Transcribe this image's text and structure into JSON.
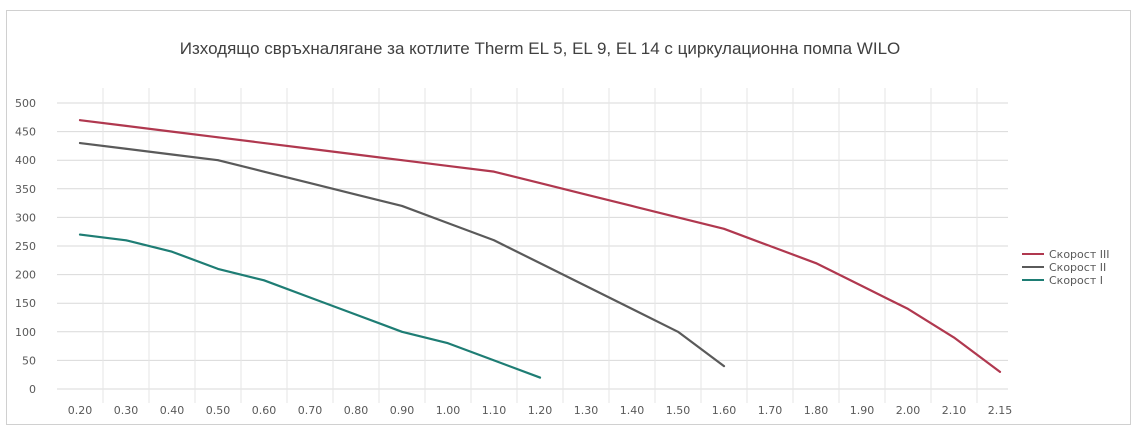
{
  "chart_data": {
    "type": "line",
    "title": "Изходящо свръхналягане за котлите Therm EL 5, EL 9, EL 14 с циркулационна помпа WILO",
    "xlabel": "",
    "ylabel": "",
    "categories": [
      "0.20",
      "0.30",
      "0.40",
      "0.50",
      "0.60",
      "0.70",
      "0.80",
      "0.90",
      "1.00",
      "1.10",
      "1.20",
      "1.30",
      "1.40",
      "1.50",
      "1.60",
      "1.70",
      "1.80",
      "1.90",
      "2.00",
      "2.10",
      "2.15"
    ],
    "y_ticks": [
      "0",
      "50",
      "100",
      "150",
      "200",
      "250",
      "300",
      "350",
      "400",
      "450",
      "500"
    ],
    "ylim": [
      0,
      500
    ],
    "grid": true,
    "legend_position": "right",
    "series": [
      {
        "name": "Скорост III",
        "color": "#b0384f",
        "values": [
          470,
          460,
          450,
          440,
          430,
          420,
          410,
          400,
          390,
          380,
          360,
          340,
          320,
          300,
          280,
          250,
          220,
          180,
          140,
          90,
          30
        ]
      },
      {
        "name": "Скорост II",
        "color": "#5a5a5a",
        "values": [
          430,
          420,
          410,
          400,
          380,
          360,
          340,
          320,
          290,
          260,
          220,
          180,
          140,
          100,
          40,
          null,
          null,
          null,
          null,
          null,
          null
        ]
      },
      {
        "name": "Скорост I",
        "color": "#1e7d74",
        "values": [
          270,
          260,
          240,
          210,
          190,
          160,
          130,
          100,
          80,
          50,
          20,
          null,
          null,
          null,
          null,
          null,
          null,
          null,
          null,
          null,
          null
        ]
      }
    ]
  }
}
